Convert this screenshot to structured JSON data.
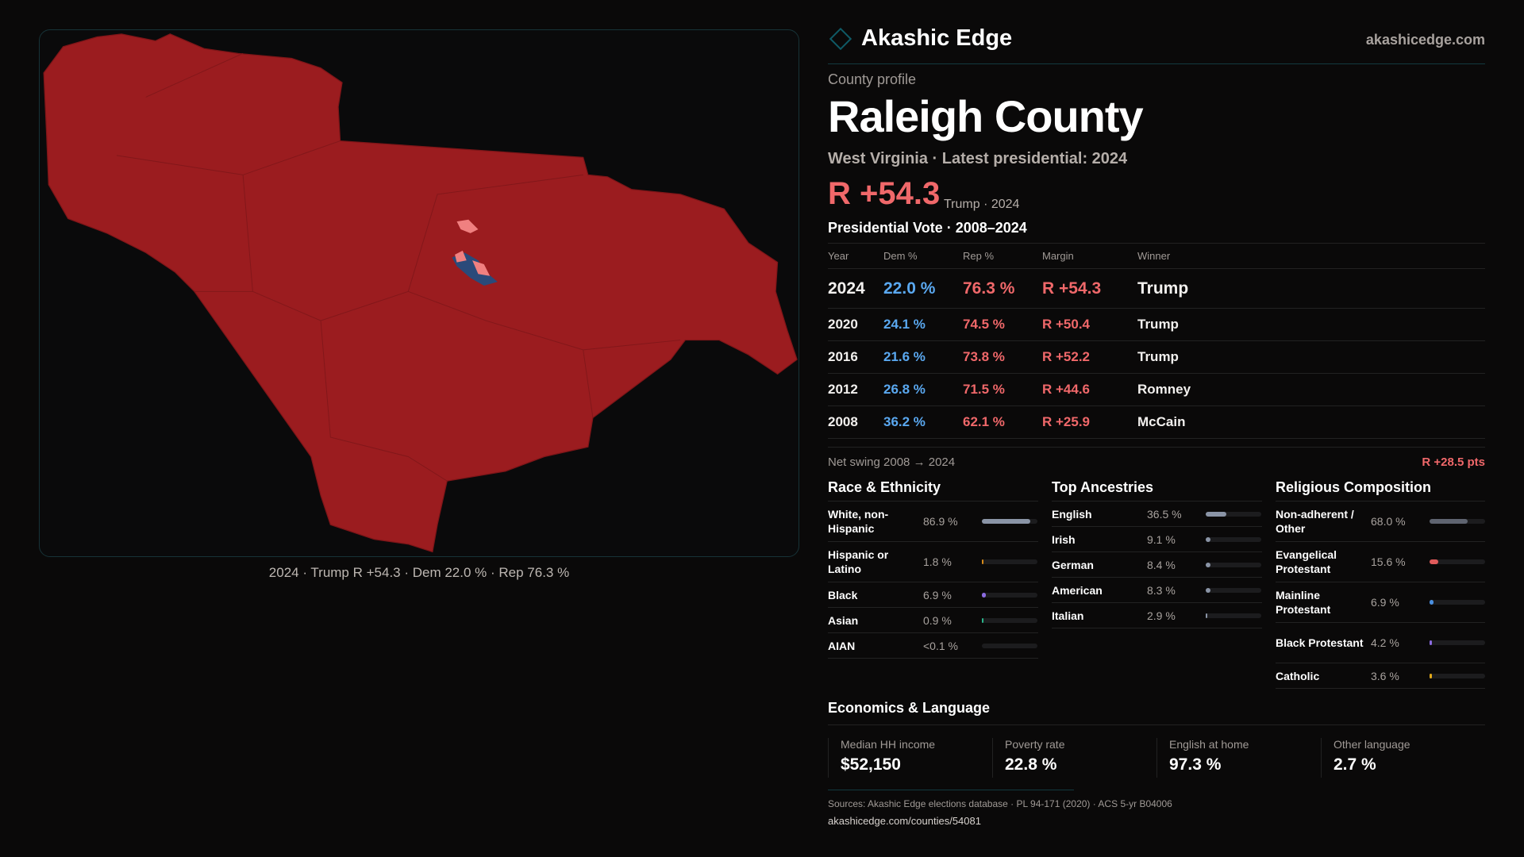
{
  "brand": {
    "name": "Akashic Edge",
    "site": "akashicedge.com"
  },
  "profile": {
    "kicker": "County profile",
    "title": "Raleigh County",
    "subtitle": "West Virginia · Latest presidential: 2024",
    "margin": "R +54.3",
    "margin_note": "Trump · 2024"
  },
  "map": {
    "caption": "2024 · Trump R +54.3 · Dem 22.0 % · Rep 76.3 %",
    "colors": {
      "rep": "#9b1c1f",
      "dem": "#2a4a7a",
      "rep_light": "#f08080"
    }
  },
  "vote": {
    "title": "Presidential Vote · 2008–2024",
    "headers": [
      "Year",
      "Dem %",
      "Rep %",
      "Margin",
      "Winner"
    ],
    "rows": [
      {
        "year": "2024",
        "dem": "22.0 %",
        "rep": "76.3 %",
        "margin": "R +54.3",
        "winner": "Trump"
      },
      {
        "year": "2020",
        "dem": "24.1 %",
        "rep": "74.5 %",
        "margin": "R +50.4",
        "winner": "Trump"
      },
      {
        "year": "2016",
        "dem": "21.6 %",
        "rep": "73.8 %",
        "margin": "R +52.2",
        "winner": "Trump"
      },
      {
        "year": "2012",
        "dem": "26.8 %",
        "rep": "71.5 %",
        "margin": "R +44.6",
        "winner": "Romney"
      },
      {
        "year": "2008",
        "dem": "36.2 %",
        "rep": "62.1 %",
        "margin": "R +25.9",
        "winner": "McCain"
      }
    ],
    "swing_label": "Net swing 2008 → 2024",
    "swing_value": "R +28.5 pts"
  },
  "race": {
    "title": "Race & Ethnicity",
    "rows": [
      {
        "label": "White, non-Hispanic",
        "value": "86.9 %",
        "pct": 86.9,
        "color": "#8a94a6"
      },
      {
        "label": "Hispanic or Latino",
        "value": "1.8 %",
        "pct": 1.8,
        "color": "#d68a1a"
      },
      {
        "label": "Black",
        "value": "6.9 %",
        "pct": 6.9,
        "color": "#8b6be0"
      },
      {
        "label": "Asian",
        "value": "0.9 %",
        "pct": 0.9,
        "color": "#2bb58a"
      },
      {
        "label": "AIAN",
        "value": "<0.1 %",
        "pct": 0.05,
        "color": "#c05050"
      }
    ]
  },
  "ancestry": {
    "title": "Top Ancestries",
    "rows": [
      {
        "label": "English",
        "value": "36.5 %",
        "pct": 36.5,
        "color": "#8a94a6"
      },
      {
        "label": "Irish",
        "value": "9.1 %",
        "pct": 9.1,
        "color": "#8a94a6"
      },
      {
        "label": "German",
        "value": "8.4 %",
        "pct": 8.4,
        "color": "#8a94a6"
      },
      {
        "label": "American",
        "value": "8.3 %",
        "pct": 8.3,
        "color": "#8a94a6"
      },
      {
        "label": "Italian",
        "value": "2.9 %",
        "pct": 2.9,
        "color": "#8a94a6"
      }
    ]
  },
  "religion": {
    "title": "Religious Composition",
    "rows": [
      {
        "label": "Non-adherent / Other",
        "value": "68.0 %",
        "pct": 68.0,
        "color": "#5f6470"
      },
      {
        "label": "Evangelical Protestant",
        "value": "15.6 %",
        "pct": 15.6,
        "color": "#e05b5b"
      },
      {
        "label": "Mainline Protestant",
        "value": "6.9 %",
        "pct": 6.9,
        "color": "#4a8fe0"
      },
      {
        "label": "Black Protestant",
        "value": "4.2 %",
        "pct": 4.2,
        "color": "#8b6be0"
      },
      {
        "label": "Catholic",
        "value": "3.6 %",
        "pct": 3.6,
        "color": "#e0a81a"
      }
    ]
  },
  "econ": {
    "title": "Economics & Language",
    "stats": [
      {
        "label": "Median HH income",
        "value": "$52,150"
      },
      {
        "label": "Poverty rate",
        "value": "22.8 %"
      },
      {
        "label": "English at home",
        "value": "97.3 %"
      },
      {
        "label": "Other language",
        "value": "2.7 %"
      }
    ]
  },
  "footer": {
    "sources": "Sources: Akashic Edge elections database · PL 94-171 (2020) · ACS 5-yr B04006",
    "url": "akashicedge.com/counties/54081"
  }
}
